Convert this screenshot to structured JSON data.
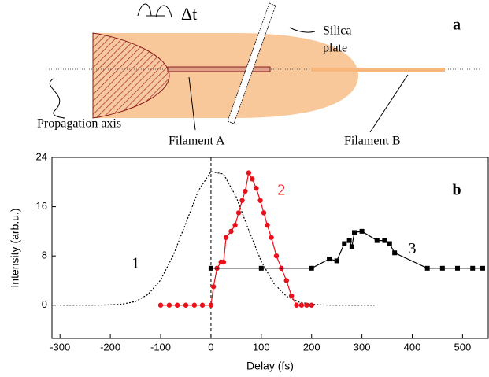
{
  "diagram": {
    "panel_label": "a",
    "delay_label": "Δt",
    "plate_label": [
      "Silica",
      "plate"
    ],
    "axis_label": "Propagation axis",
    "filament_a": "Filament A",
    "filament_b": "Filament B"
  },
  "chart_data": {
    "type": "line",
    "panel_label": "b",
    "x_label": "Delay (fs)",
    "y_label": "Intensity (arb.u.)",
    "xlim": [
      -316,
      551
    ],
    "ylim": [
      -5.4,
      24
    ],
    "xticks": [
      -300,
      -200,
      -100,
      0,
      100,
      200,
      300,
      400,
      500
    ],
    "yticks": [
      0,
      8,
      16,
      24
    ],
    "series": [
      {
        "name": "1",
        "color": "#000000",
        "style": "dotted",
        "marker": "none",
        "x": [
          -300,
          -275,
          -250,
          -225,
          -200,
          -175,
          -150,
          -125,
          -100,
          -75,
          -50,
          -25,
          0,
          25,
          50,
          75,
          100,
          125,
          150,
          175,
          200,
          225,
          250,
          275,
          300,
          325
        ],
        "values": [
          0,
          0,
          0,
          0.01,
          0.05,
          0.19,
          0.6,
          1.75,
          4.1,
          8.1,
          13.3,
          18.6,
          21.7,
          21.3,
          17.6,
          12.2,
          7.1,
          3.5,
          1.45,
          0.5,
          0.15,
          0.03,
          0,
          0,
          0,
          0
        ]
      },
      {
        "name": "2",
        "color": "#e8101a",
        "style": "solid",
        "marker": "circle",
        "x": [
          -100,
          -83,
          -67,
          -50,
          -33,
          -17,
          0,
          5,
          12,
          20,
          25,
          30,
          40,
          48,
          55,
          62,
          68,
          75,
          82,
          90,
          98,
          105,
          112,
          120,
          130,
          140,
          150,
          160,
          170,
          180,
          190,
          200
        ],
        "values": [
          0,
          0,
          0,
          0,
          0,
          0,
          0,
          3,
          6,
          7,
          7,
          11,
          12,
          13,
          15,
          17,
          18.5,
          21.5,
          20.5,
          19,
          17,
          15,
          13,
          11,
          8,
          6,
          4,
          1.5,
          0,
          0,
          0,
          0
        ]
      },
      {
        "name": "3",
        "color": "#000000",
        "style": "solid",
        "marker": "square",
        "x": [
          0,
          100,
          200,
          235,
          250,
          265,
          275,
          280,
          285,
          300,
          330,
          345,
          355,
          365,
          430,
          460,
          490,
          520,
          540
        ],
        "values": [
          6,
          6,
          6,
          7.5,
          7.2,
          10,
          10.5,
          9.5,
          11.8,
          12,
          10.5,
          10.5,
          10,
          8.5,
          6,
          6,
          6,
          6,
          6
        ]
      }
    ]
  }
}
